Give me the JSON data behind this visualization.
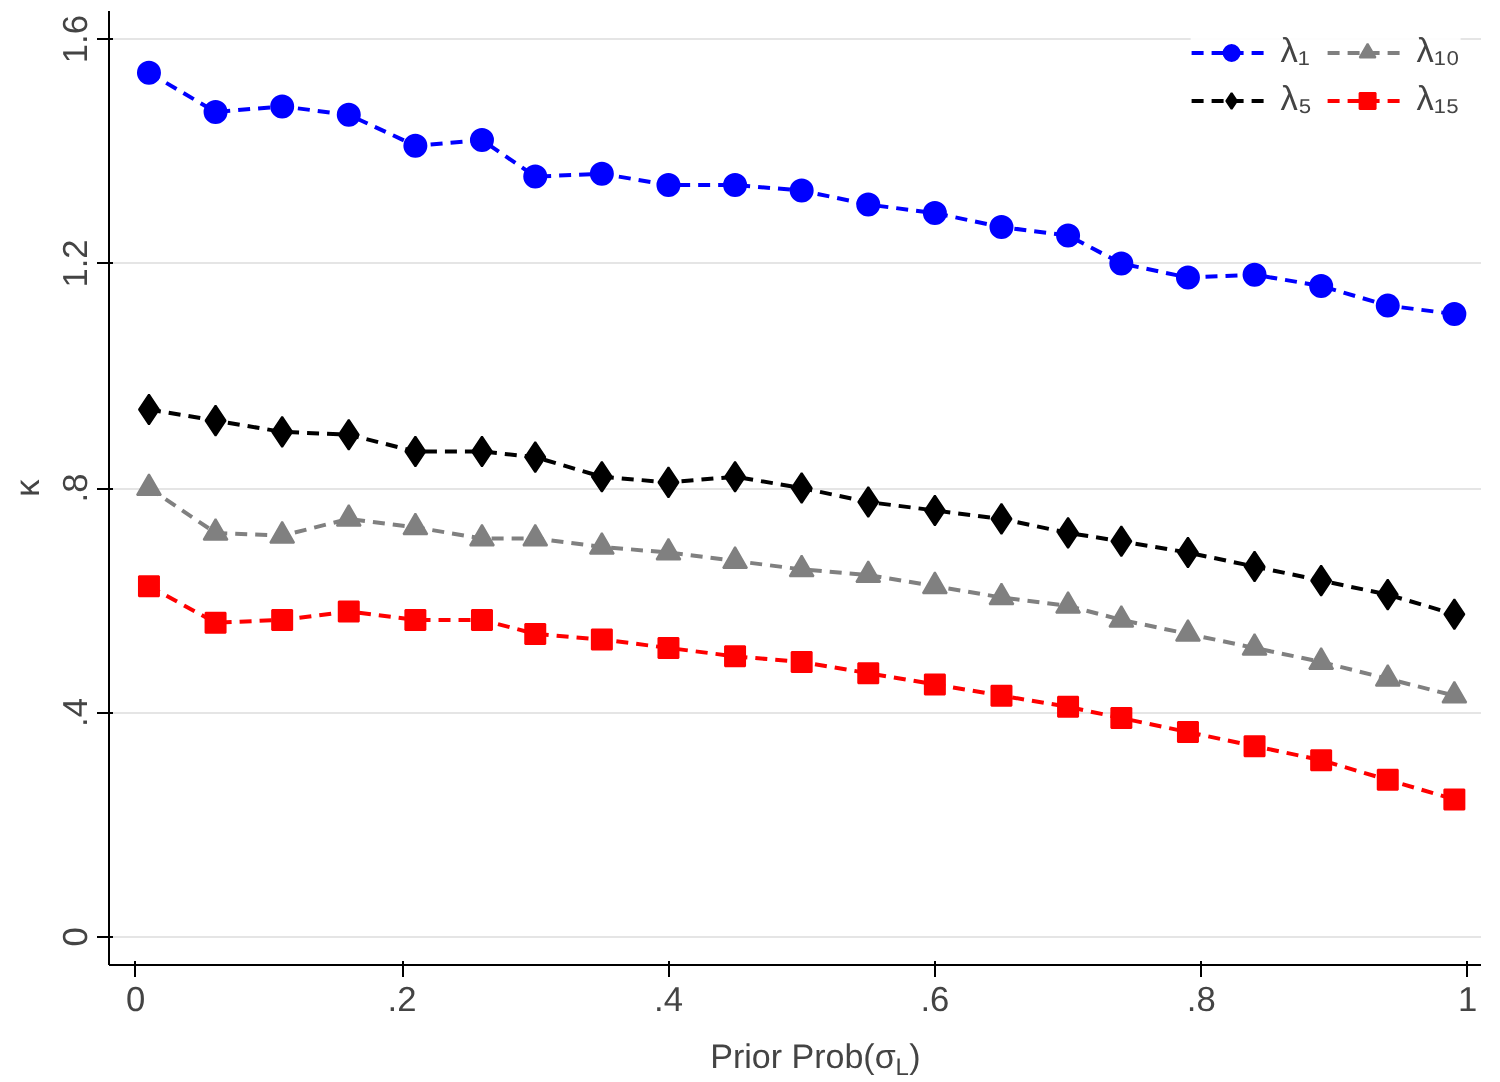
{
  "chart_data": {
    "type": "line",
    "xlabel": "Prior Prob(σ$_{L}$)",
    "ylabel": "κ",
    "x": [
      0.01,
      0.06,
      0.11,
      0.16,
      0.21,
      0.26,
      0.3,
      0.35,
      0.4,
      0.45,
      0.5,
      0.55,
      0.6,
      0.65,
      0.7,
      0.74,
      0.79,
      0.84,
      0.89,
      0.94,
      0.99
    ],
    "series": [
      {
        "name": "λ₁",
        "color": "#0000ff",
        "marker": "circle",
        "values": [
          1.54,
          1.47,
          1.48,
          1.465,
          1.41,
          1.42,
          1.355,
          1.36,
          1.34,
          1.34,
          1.33,
          1.305,
          1.29,
          1.265,
          1.25,
          1.2,
          1.175,
          1.18,
          1.16,
          1.125,
          1.11
        ]
      },
      {
        "name": "λ₅",
        "color": "#000000",
        "marker": "diamond",
        "values": [
          0.94,
          0.92,
          0.9,
          0.895,
          0.865,
          0.865,
          0.855,
          0.82,
          0.81,
          0.82,
          0.8,
          0.775,
          0.76,
          0.745,
          0.72,
          0.705,
          0.685,
          0.66,
          0.635,
          0.61,
          0.575
        ]
      },
      {
        "name": "λ₁₀",
        "color": "#808080",
        "marker": "triangle",
        "values": [
          0.8,
          0.72,
          0.715,
          0.745,
          0.73,
          0.71,
          0.71,
          0.695,
          0.685,
          0.67,
          0.655,
          0.645,
          0.625,
          0.605,
          0.59,
          0.565,
          0.54,
          0.515,
          0.49,
          0.46,
          0.43
        ]
      },
      {
        "name": "λ₁₅",
        "color": "#ff0000",
        "marker": "square",
        "values": [
          0.625,
          0.56,
          0.565,
          0.58,
          0.565,
          0.565,
          0.54,
          0.53,
          0.515,
          0.5,
          0.49,
          0.47,
          0.45,
          0.43,
          0.41,
          0.39,
          0.365,
          0.34,
          0.315,
          0.28,
          0.245
        ]
      }
    ],
    "xlim": [
      -0.02,
      1.01
    ],
    "ylim": [
      -0.05,
      1.65
    ],
    "xticks": [
      {
        "value": 0,
        "label": "0"
      },
      {
        "value": 0.2,
        "label": ".2"
      },
      {
        "value": 0.4,
        "label": ".4"
      },
      {
        "value": 0.6,
        "label": ".6"
      },
      {
        "value": 0.8,
        "label": ".8"
      },
      {
        "value": 1,
        "label": "1"
      }
    ],
    "yticks": [
      {
        "value": 0,
        "label": "0"
      },
      {
        "value": 0.4,
        "label": ".4"
      },
      {
        "value": 0.8,
        "label": ".8"
      },
      {
        "value": 1.2,
        "label": "1.2"
      },
      {
        "value": 1.6,
        "label": "1.6"
      }
    ],
    "grid": "y",
    "legend": "top right",
    "line_style": "dashed"
  }
}
